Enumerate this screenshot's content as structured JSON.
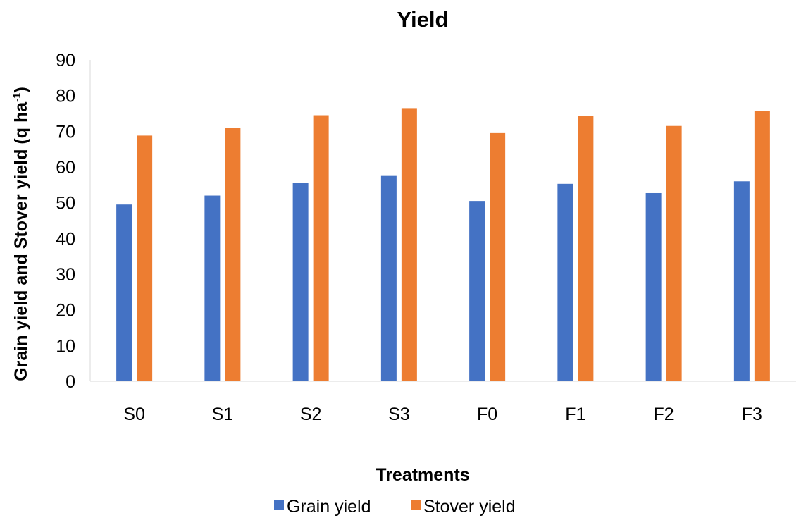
{
  "chart_data": {
    "type": "bar",
    "title": "Yield",
    "xlabel": "Treatments",
    "ylabel_main": "Grain yield and Stover yield (q ha",
    "ylabel_sup": "-1",
    "ylabel_close": ")",
    "categories": [
      "S0",
      "S1",
      "S2",
      "S3",
      "F0",
      "F1",
      "F2",
      "F3"
    ],
    "series": [
      {
        "name": "Grain yield",
        "color": "#4472C4",
        "values": [
          49.5,
          52.0,
          55.5,
          57.5,
          50.5,
          55.3,
          52.7,
          56.0
        ]
      },
      {
        "name": "Stover yield",
        "color": "#ED7D31",
        "values": [
          68.8,
          71.0,
          74.5,
          76.5,
          69.5,
          74.3,
          71.5,
          75.7
        ]
      }
    ],
    "ylim": [
      0,
      90
    ],
    "yticks": [
      0,
      10,
      20,
      30,
      40,
      50,
      60,
      70,
      80,
      90
    ],
    "grid": false,
    "legend_position": "bottom"
  }
}
